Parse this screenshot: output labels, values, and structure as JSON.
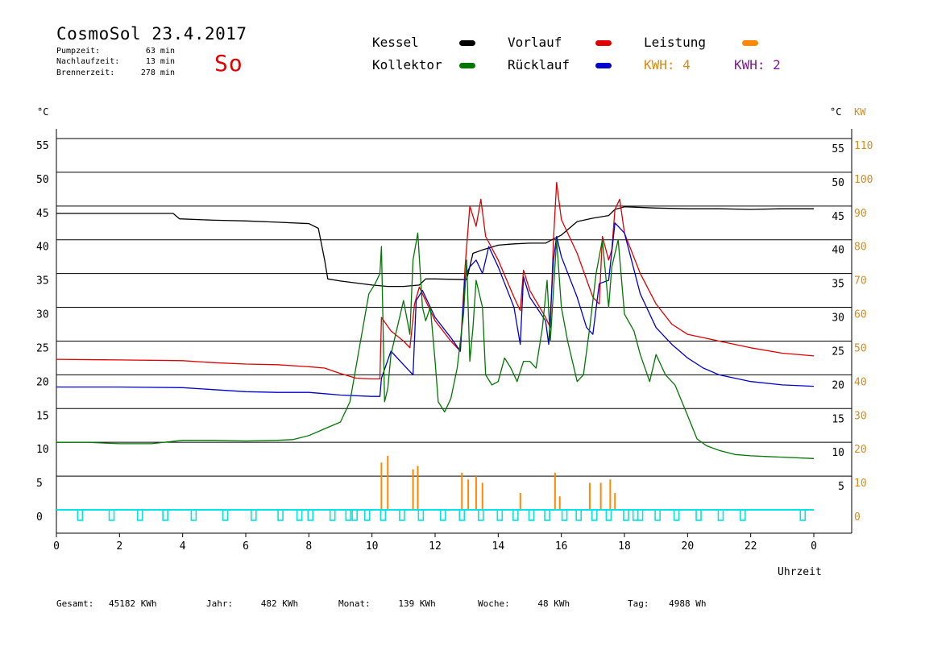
{
  "header": {
    "title": "CosmoSol 23.4.2017",
    "day": "So",
    "stats": [
      {
        "label": "Pumpzeit:",
        "value": "63 min"
      },
      {
        "label": "Nachlaufzeit:",
        "value": "13 min"
      },
      {
        "label": "Brennerzeit:",
        "value": "278 min"
      }
    ]
  },
  "legend": {
    "kessel": {
      "label": "Kessel",
      "color": "#000000"
    },
    "vorlauf": {
      "label": "Vorlauf",
      "color": "#e00000"
    },
    "leistung": {
      "label": "Leistung",
      "color": "#ff8800"
    },
    "kollektor": {
      "label": "Kollektor",
      "color": "#007700"
    },
    "ruecklauf": {
      "label": "Rücklauf",
      "color": "#0000cc"
    },
    "kwh1": {
      "label": "KWH: 4",
      "color": "#d98a1a"
    },
    "kwh2": {
      "label": "KWH: 2",
      "color": "#7a1f8a"
    }
  },
  "footer": [
    {
      "label": "Gesamt:",
      "value": "45182 KWh"
    },
    {
      "label": "Jahr:",
      "value": "482 KWh"
    },
    {
      "label": "Monat:",
      "value": "139 KWh"
    },
    {
      "label": "Woche:",
      "value": "48 KWh"
    },
    {
      "label": "Tag:",
      "value": "4988 Wh"
    }
  ],
  "chart_data": {
    "type": "line",
    "xlabel": "Uhrzeit",
    "ylabel_left": "°C",
    "ylabel_right_1": "°C",
    "ylabel_right_2": "KW",
    "xlim": [
      0,
      24
    ],
    "ylim": [
      0,
      55
    ],
    "ylim_right_kw": [
      0,
      110
    ],
    "x_ticks": [
      "0",
      "2",
      "4",
      "6",
      "8",
      "10",
      "12",
      "14",
      "16",
      "18",
      "20",
      "22",
      "0"
    ],
    "y_ticks": [
      0,
      5,
      10,
      15,
      20,
      25,
      30,
      35,
      40,
      45,
      50,
      55
    ],
    "y_ticks_right_kw": [
      0,
      10,
      20,
      30,
      40,
      50,
      60,
      70,
      80,
      90,
      100,
      110
    ],
    "grid": true,
    "series": [
      {
        "name": "Kessel",
        "color": "#000000",
        "points": [
          [
            0,
            43.9
          ],
          [
            3.7,
            43.9
          ],
          [
            3.9,
            43.1
          ],
          [
            5,
            42.9
          ],
          [
            6,
            42.8
          ],
          [
            7,
            42.6
          ],
          [
            8,
            42.4
          ],
          [
            8.3,
            41.7
          ],
          [
            8.5,
            37
          ],
          [
            8.6,
            34.2
          ],
          [
            9,
            33.9
          ],
          [
            9.5,
            33.6
          ],
          [
            10,
            33.3
          ],
          [
            10.5,
            33.1
          ],
          [
            11,
            33.1
          ],
          [
            11.5,
            33.3
          ],
          [
            11.7,
            34.2
          ],
          [
            12,
            34.2
          ],
          [
            13,
            34.1
          ],
          [
            13.2,
            38
          ],
          [
            13.5,
            38.5
          ],
          [
            14,
            39.2
          ],
          [
            14.5,
            39.4
          ],
          [
            15,
            39.5
          ],
          [
            15.5,
            39.5
          ],
          [
            15.7,
            40
          ],
          [
            16,
            40.7
          ],
          [
            16.5,
            42.7
          ],
          [
            17,
            43.2
          ],
          [
            17.5,
            43.6
          ],
          [
            17.7,
            44.5
          ],
          [
            18,
            44.9
          ],
          [
            19,
            44.7
          ],
          [
            20,
            44.6
          ],
          [
            21,
            44.6
          ],
          [
            22,
            44.5
          ],
          [
            23,
            44.6
          ],
          [
            24,
            44.6
          ]
        ]
      },
      {
        "name": "Vorlauf",
        "color": "#e00000",
        "points": [
          [
            0,
            22.3
          ],
          [
            2,
            22.2
          ],
          [
            4,
            22.1
          ],
          [
            5,
            21.8
          ],
          [
            6,
            21.6
          ],
          [
            7,
            21.5
          ],
          [
            8,
            21.2
          ],
          [
            8.5,
            21
          ],
          [
            9,
            20.2
          ],
          [
            9.5,
            19.5
          ],
          [
            10,
            19.4
          ],
          [
            10.25,
            19.4
          ],
          [
            10.3,
            28.5
          ],
          [
            10.6,
            26.5
          ],
          [
            11,
            25
          ],
          [
            11.2,
            24
          ],
          [
            11.35,
            30.5
          ],
          [
            11.5,
            33
          ],
          [
            11.6,
            32
          ],
          [
            12,
            28
          ],
          [
            12.5,
            25
          ],
          [
            12.8,
            23.5
          ],
          [
            12.95,
            36
          ],
          [
            13.1,
            45
          ],
          [
            13.3,
            42
          ],
          [
            13.45,
            46
          ],
          [
            13.6,
            40.5
          ],
          [
            14,
            37
          ],
          [
            14.5,
            31.5
          ],
          [
            14.7,
            29.5
          ],
          [
            14.8,
            35.5
          ],
          [
            15,
            32.5
          ],
          [
            15.5,
            28.5
          ],
          [
            15.65,
            27
          ],
          [
            15.75,
            40
          ],
          [
            15.85,
            48.5
          ],
          [
            16,
            43
          ],
          [
            16.5,
            38
          ],
          [
            17,
            31.5
          ],
          [
            17.2,
            30.5
          ],
          [
            17.3,
            40.5
          ],
          [
            17.5,
            37
          ],
          [
            17.6,
            38.5
          ],
          [
            17.7,
            44.5
          ],
          [
            17.85,
            46
          ],
          [
            18,
            41
          ],
          [
            18.5,
            35
          ],
          [
            19,
            30.5
          ],
          [
            19.5,
            27.5
          ],
          [
            20,
            26
          ],
          [
            20.5,
            25.5
          ],
          [
            21,
            25
          ],
          [
            22,
            24
          ],
          [
            23,
            23.2
          ],
          [
            24,
            22.8
          ]
        ]
      },
      {
        "name": "Rücklauf",
        "color": "#0000cc",
        "points": [
          [
            0,
            18.2
          ],
          [
            2,
            18.2
          ],
          [
            4,
            18.1
          ],
          [
            5,
            17.8
          ],
          [
            6,
            17.5
          ],
          [
            7,
            17.4
          ],
          [
            8,
            17.4
          ],
          [
            8.5,
            17.2
          ],
          [
            9,
            17
          ],
          [
            10,
            16.8
          ],
          [
            10.25,
            16.8
          ],
          [
            10.3,
            19.5
          ],
          [
            10.6,
            23.5
          ],
          [
            11,
            21.5
          ],
          [
            11.3,
            20
          ],
          [
            11.4,
            31
          ],
          [
            11.6,
            32.5
          ],
          [
            12,
            28.5
          ],
          [
            12.5,
            25.5
          ],
          [
            12.8,
            23.5
          ],
          [
            12.95,
            34.5
          ],
          [
            13.1,
            36
          ],
          [
            13.3,
            37
          ],
          [
            13.5,
            35
          ],
          [
            13.7,
            39
          ],
          [
            14,
            36
          ],
          [
            14.5,
            30
          ],
          [
            14.7,
            24.5
          ],
          [
            14.8,
            34.5
          ],
          [
            15,
            31.5
          ],
          [
            15.5,
            28
          ],
          [
            15.6,
            24.5
          ],
          [
            15.75,
            37
          ],
          [
            15.85,
            40.5
          ],
          [
            16,
            37.5
          ],
          [
            16.5,
            31.5
          ],
          [
            16.8,
            27
          ],
          [
            17,
            26
          ],
          [
            17.2,
            33.5
          ],
          [
            17.5,
            34
          ],
          [
            17.7,
            42.5
          ],
          [
            18,
            41
          ],
          [
            18.5,
            32
          ],
          [
            19,
            27
          ],
          [
            19.5,
            24.5
          ],
          [
            20,
            22.5
          ],
          [
            20.5,
            21
          ],
          [
            21,
            20
          ],
          [
            22,
            19
          ],
          [
            23,
            18.5
          ],
          [
            24,
            18.3
          ]
        ]
      },
      {
        "name": "Kollektor",
        "color": "#007700",
        "points": [
          [
            0,
            10
          ],
          [
            1,
            10
          ],
          [
            2,
            9.8
          ],
          [
            3,
            9.8
          ],
          [
            4,
            10.3
          ],
          [
            5,
            10.3
          ],
          [
            6,
            10.2
          ],
          [
            7,
            10.3
          ],
          [
            7.5,
            10.4
          ],
          [
            8,
            11
          ],
          [
            8.5,
            12
          ],
          [
            9,
            13
          ],
          [
            9.3,
            16
          ],
          [
            9.6,
            24
          ],
          [
            9.9,
            32
          ],
          [
            10.1,
            33.5
          ],
          [
            10.25,
            35
          ],
          [
            10.3,
            39
          ],
          [
            10.4,
            16
          ],
          [
            10.5,
            18
          ],
          [
            10.6,
            23
          ],
          [
            10.8,
            27
          ],
          [
            11,
            31
          ],
          [
            11.2,
            26
          ],
          [
            11.3,
            37
          ],
          [
            11.45,
            41
          ],
          [
            11.6,
            30
          ],
          [
            11.7,
            28
          ],
          [
            11.85,
            30
          ],
          [
            12,
            22
          ],
          [
            12.1,
            16
          ],
          [
            12.3,
            14.5
          ],
          [
            12.5,
            16.5
          ],
          [
            12.7,
            21
          ],
          [
            12.9,
            29
          ],
          [
            13.0,
            37
          ],
          [
            13.1,
            22
          ],
          [
            13.2,
            27
          ],
          [
            13.3,
            34
          ],
          [
            13.5,
            30
          ],
          [
            13.6,
            20
          ],
          [
            13.8,
            18.5
          ],
          [
            14,
            19
          ],
          [
            14.2,
            22.5
          ],
          [
            14.4,
            21
          ],
          [
            14.6,
            19
          ],
          [
            14.8,
            22
          ],
          [
            15,
            22
          ],
          [
            15.2,
            21
          ],
          [
            15.4,
            27
          ],
          [
            15.55,
            34
          ],
          [
            15.65,
            25
          ],
          [
            15.85,
            40
          ],
          [
            16,
            30
          ],
          [
            16.2,
            25
          ],
          [
            16.5,
            19
          ],
          [
            16.7,
            20
          ],
          [
            16.9,
            27
          ],
          [
            17.1,
            35
          ],
          [
            17.3,
            40
          ],
          [
            17.5,
            30
          ],
          [
            17.6,
            36
          ],
          [
            17.8,
            40
          ],
          [
            18,
            29
          ],
          [
            18.3,
            26.5
          ],
          [
            18.5,
            23
          ],
          [
            18.8,
            19
          ],
          [
            19,
            23
          ],
          [
            19.3,
            20
          ],
          [
            19.6,
            18.5
          ],
          [
            20,
            14
          ],
          [
            20.3,
            10.5
          ],
          [
            20.6,
            9.5
          ],
          [
            21,
            8.8
          ],
          [
            21.5,
            8.2
          ],
          [
            22,
            8
          ],
          [
            22.5,
            7.9
          ],
          [
            23,
            7.8
          ],
          [
            24,
            7.6
          ]
        ]
      }
    ],
    "bars": {
      "name": "Leistung",
      "unit": "KW",
      "color": "#ff8800",
      "values": [
        [
          10.3,
          14
        ],
        [
          10.5,
          16
        ],
        [
          11.3,
          12
        ],
        [
          11.45,
          13
        ],
        [
          12.85,
          11
        ],
        [
          13.05,
          9
        ],
        [
          13.3,
          10
        ],
        [
          13.5,
          8
        ],
        [
          14.7,
          5
        ],
        [
          15.8,
          11
        ],
        [
          15.95,
          4
        ],
        [
          16.9,
          8
        ],
        [
          17.25,
          8
        ],
        [
          17.55,
          9
        ],
        [
          17.7,
          5
        ]
      ]
    },
    "pump_marks": {
      "color": "#00e5e5",
      "positions": [
        0.75,
        1.75,
        2.65,
        3.45,
        4.35,
        5.35,
        6.25,
        7.1,
        7.7,
        8.05,
        8.75,
        9.25,
        9.45,
        9.85,
        10.35,
        10.95,
        11.55,
        12.25,
        12.85,
        13.45,
        14.05,
        14.55,
        15.05,
        15.55,
        16.1,
        16.55,
        17.05,
        17.5,
        18.05,
        18.35,
        18.5,
        19.05,
        19.65,
        20.35,
        21.05,
        21.75,
        23.65
      ]
    }
  }
}
